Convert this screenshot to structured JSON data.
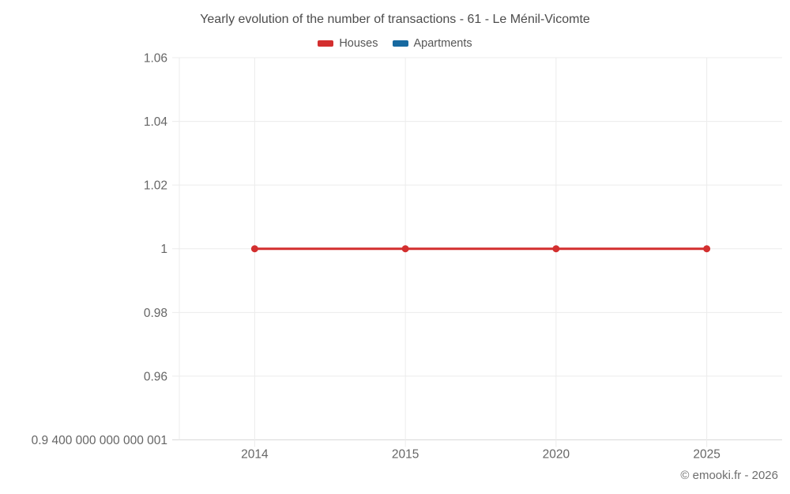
{
  "title": "Yearly evolution of the number of transactions - 61 - Le Ménil-Vicomte",
  "legend": [
    {
      "label": "Houses",
      "color": "#d32f2f"
    },
    {
      "label": "Apartments",
      "color": "#1769a0"
    }
  ],
  "footer": "© emooki.fr - 2026",
  "colors": {
    "grid": "#ececec",
    "axis": "#d9d9d9",
    "tick_text": "#666666",
    "title_text": "#4c4c4c"
  },
  "chart_data": {
    "type": "line",
    "title": "Yearly evolution of the number of transactions - 61 - Le Ménil-Vicomte",
    "categories": [
      "2014",
      "2015",
      "2020",
      "2025"
    ],
    "series": [
      {
        "name": "Houses",
        "color": "#d32f2f",
        "values": [
          1,
          1,
          1,
          1
        ]
      },
      {
        "name": "Apartments",
        "color": "#1769a0",
        "values": []
      }
    ],
    "xlabel": "",
    "ylabel": "",
    "ylim": [
      0.94,
      1.06
    ],
    "ytick_values": [
      1.06,
      1.04,
      1.02,
      1,
      0.98,
      0.96,
      0.94
    ],
    "ytick_labels": [
      "1.06",
      "1.04",
      "1.02",
      "1",
      "0.98",
      "0.96",
      "0.9 400 000 000 000 001"
    ],
    "grid": true,
    "legend_position": "top"
  }
}
